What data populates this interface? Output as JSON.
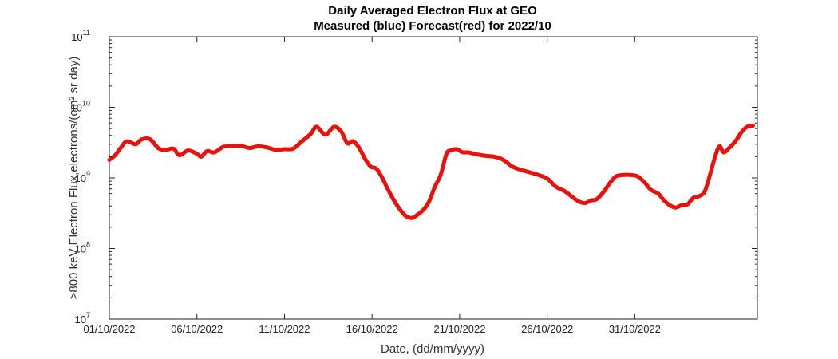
{
  "chart_data": {
    "type": "line",
    "title": "Daily Averaged Electron Flux at GEO",
    "subtitle": "Measured (blue) Forecast(red) for 2022/10",
    "xlabel": "Date, (dd/mm/yyyy)",
    "ylabel": ">800 keV Electron Flux,electrons/(cm² sr day)",
    "y_scale": "log",
    "ylim": [
      10000000.0,
      100000000000.0
    ],
    "y_ticks": [
      {
        "base": "10",
        "exp": "7"
      },
      {
        "base": "10",
        "exp": "8"
      },
      {
        "base": "10",
        "exp": "9"
      },
      {
        "base": "10",
        "exp": "10"
      },
      {
        "base": "10",
        "exp": "11"
      }
    ],
    "xlim": [
      "2022-10-01",
      "2022-11-07"
    ],
    "x_ticks": [
      {
        "date": "2022-10-01",
        "label": "01/10/2022"
      },
      {
        "date": "2022-10-06",
        "label": "06/10/2022"
      },
      {
        "date": "2022-10-11",
        "label": "11/10/2022"
      },
      {
        "date": "2022-10-16",
        "label": "16/10/2022"
      },
      {
        "date": "2022-10-21",
        "label": "21/10/2022"
      },
      {
        "date": "2022-10-26",
        "label": "26/10/2022"
      },
      {
        "date": "2022-10-31",
        "label": "31/10/2022"
      }
    ],
    "grid": false,
    "series": [
      {
        "color": "#e8120c",
        "points": [
          [
            "2022-10-01 00:00",
            1800000000.0
          ],
          [
            "2022-10-01 08:00",
            2100000000.0
          ],
          [
            "2022-10-01 16:00",
            2700000000.0
          ],
          [
            "2022-10-02 00:00",
            3300000000.0
          ],
          [
            "2022-10-02 12:00",
            3000000000.0
          ],
          [
            "2022-10-02 20:00",
            3500000000.0
          ],
          [
            "2022-10-03 06:00",
            3600000000.0
          ],
          [
            "2022-10-03 12:00",
            3200000000.0
          ],
          [
            "2022-10-03 20:00",
            2600000000.0
          ],
          [
            "2022-10-04 06:00",
            2500000000.0
          ],
          [
            "2022-10-04 16:00",
            2600000000.0
          ],
          [
            "2022-10-05 00:00",
            2100000000.0
          ],
          [
            "2022-10-05 12:00",
            2450000000.0
          ],
          [
            "2022-10-06 00:00",
            2200000000.0
          ],
          [
            "2022-10-06 06:00",
            2000000000.0
          ],
          [
            "2022-10-06 14:00",
            2400000000.0
          ],
          [
            "2022-10-07 00:00",
            2300000000.0
          ],
          [
            "2022-10-07 12:00",
            2750000000.0
          ],
          [
            "2022-10-08 00:00",
            2800000000.0
          ],
          [
            "2022-10-08 12:00",
            2850000000.0
          ],
          [
            "2022-10-09 00:00",
            2650000000.0
          ],
          [
            "2022-10-09 12:00",
            2800000000.0
          ],
          [
            "2022-10-10 00:00",
            2700000000.0
          ],
          [
            "2022-10-10 12:00",
            2500000000.0
          ],
          [
            "2022-10-11 00:00",
            2550000000.0
          ],
          [
            "2022-10-11 12:00",
            2600000000.0
          ],
          [
            "2022-10-12 00:00",
            3300000000.0
          ],
          [
            "2022-10-12 12:00",
            4200000000.0
          ],
          [
            "2022-10-12 20:00",
            5300000000.0
          ],
          [
            "2022-10-13 08:00",
            4100000000.0
          ],
          [
            "2022-10-13 20:00",
            5300000000.0
          ],
          [
            "2022-10-14 06:00",
            4500000000.0
          ],
          [
            "2022-10-14 14:00",
            3100000000.0
          ],
          [
            "2022-10-14 22:00",
            3300000000.0
          ],
          [
            "2022-10-15 06:00",
            2700000000.0
          ],
          [
            "2022-10-15 14:00",
            1900000000.0
          ],
          [
            "2022-10-15 22:00",
            1450000000.0
          ],
          [
            "2022-10-16 06:00",
            1350000000.0
          ],
          [
            "2022-10-16 14:00",
            1000000000.0
          ],
          [
            "2022-10-16 22:00",
            680000000.0
          ],
          [
            "2022-10-17 06:00",
            480000000.0
          ],
          [
            "2022-10-17 14:00",
            360000000.0
          ],
          [
            "2022-10-17 22:00",
            290000000.0
          ],
          [
            "2022-10-18 06:00",
            270000000.0
          ],
          [
            "2022-10-18 12:00",
            290000000.0
          ],
          [
            "2022-10-18 22:00",
            350000000.0
          ],
          [
            "2022-10-19 06:00",
            460000000.0
          ],
          [
            "2022-10-19 14:00",
            750000000.0
          ],
          [
            "2022-10-19 22:00",
            1100000000.0
          ],
          [
            "2022-10-20 06:00",
            2200000000.0
          ],
          [
            "2022-10-20 12:00",
            2450000000.0
          ],
          [
            "2022-10-20 20:00",
            2550000000.0
          ],
          [
            "2022-10-21 04:00",
            2300000000.0
          ],
          [
            "2022-10-21 12:00",
            2300000000.0
          ],
          [
            "2022-10-22 00:00",
            2150000000.0
          ],
          [
            "2022-10-22 12:00",
            2050000000.0
          ],
          [
            "2022-10-23 00:00",
            2000000000.0
          ],
          [
            "2022-10-23 12:00",
            1800000000.0
          ],
          [
            "2022-10-24 00:00",
            1450000000.0
          ],
          [
            "2022-10-24 12:00",
            1300000000.0
          ],
          [
            "2022-10-25 00:00",
            1200000000.0
          ],
          [
            "2022-10-25 12:00",
            1100000000.0
          ],
          [
            "2022-10-26 00:00",
            980000000.0
          ],
          [
            "2022-10-26 12:00",
            750000000.0
          ],
          [
            "2022-10-27 00:00",
            650000000.0
          ],
          [
            "2022-10-27 12:00",
            520000000.0
          ],
          [
            "2022-10-27 20:00",
            460000000.0
          ],
          [
            "2022-10-28 04:00",
            440000000.0
          ],
          [
            "2022-10-28 12:00",
            480000000.0
          ],
          [
            "2022-10-28 20:00",
            500000000.0
          ],
          [
            "2022-10-29 06:00",
            650000000.0
          ],
          [
            "2022-10-29 14:00",
            850000000.0
          ],
          [
            "2022-10-29 22:00",
            1050000000.0
          ],
          [
            "2022-10-30 08:00",
            1100000000.0
          ],
          [
            "2022-10-30 18:00",
            1100000000.0
          ],
          [
            "2022-10-31 04:00",
            1050000000.0
          ],
          [
            "2022-10-31 14:00",
            850000000.0
          ],
          [
            "2022-10-31 22:00",
            680000000.0
          ],
          [
            "2022-11-01 08:00",
            600000000.0
          ],
          [
            "2022-11-01 16:00",
            480000000.0
          ],
          [
            "2022-11-02 00:00",
            410000000.0
          ],
          [
            "2022-11-02 08:00",
            380000000.0
          ],
          [
            "2022-11-02 16:00",
            410000000.0
          ],
          [
            "2022-11-03 00:00",
            420000000.0
          ],
          [
            "2022-11-03 08:00",
            520000000.0
          ],
          [
            "2022-11-03 16:00",
            550000000.0
          ],
          [
            "2022-11-04 00:00",
            650000000.0
          ],
          [
            "2022-11-04 08:00",
            1200000000.0
          ],
          [
            "2022-11-04 14:00",
            2000000000.0
          ],
          [
            "2022-11-04 20:00",
            2800000000.0
          ],
          [
            "2022-11-05 02:00",
            2300000000.0
          ],
          [
            "2022-11-05 10:00",
            2700000000.0
          ],
          [
            "2022-11-05 18:00",
            3300000000.0
          ],
          [
            "2022-11-06 02:00",
            4400000000.0
          ],
          [
            "2022-11-06 10:00",
            5300000000.0
          ],
          [
            "2022-11-06 18:00",
            5500000000.0
          ]
        ]
      }
    ]
  }
}
